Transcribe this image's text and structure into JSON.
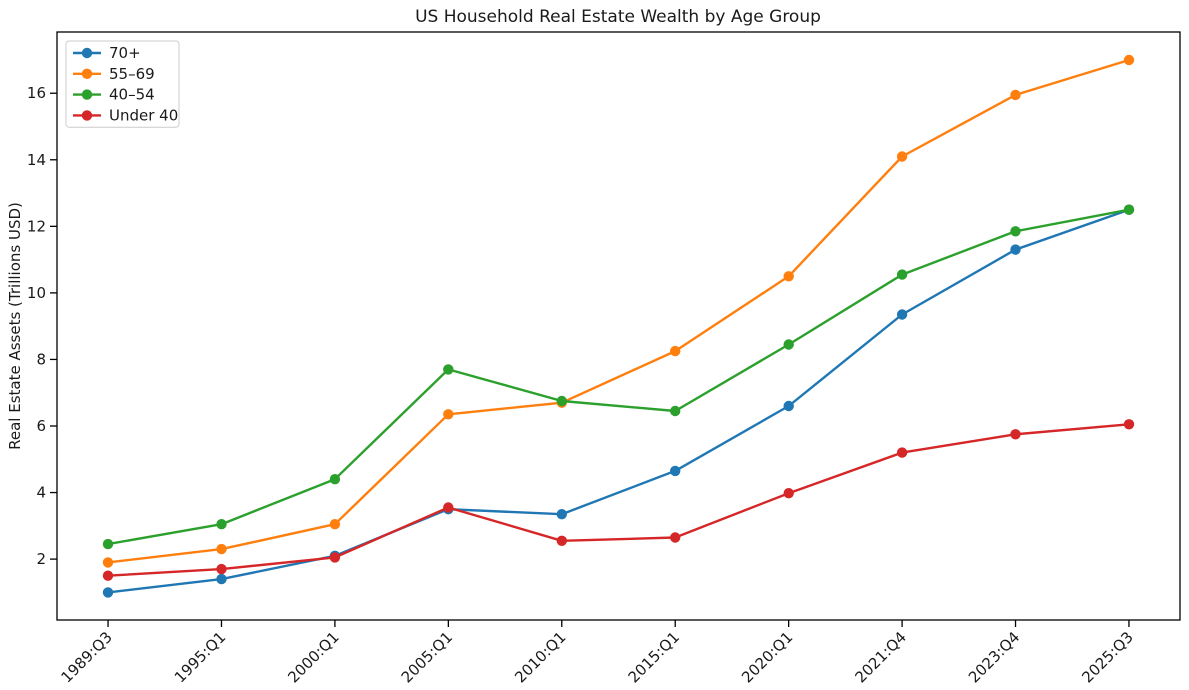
{
  "figure": {
    "background": "#ffffff",
    "text_color": "#1a1a1a",
    "spine_color": "#000000",
    "legend_border_color": "#cccccc",
    "legend_background": "#ffffff"
  },
  "chart_data": {
    "type": "line",
    "title": "US Household Real Estate Wealth by Age Group",
    "xlabel": "",
    "ylabel": "Real Estate Assets (Trillions USD)",
    "categories": [
      "1989:Q3",
      "1995:Q1",
      "2000:Q1",
      "2005:Q1",
      "2010:Q1",
      "2015:Q1",
      "2020:Q1",
      "2021:Q4",
      "2023:Q4",
      "2025:Q3"
    ],
    "series": [
      {
        "name": "70+",
        "color": "#1f77b4",
        "values": [
          1.0,
          1.4,
          2.1,
          3.5,
          3.35,
          4.65,
          6.6,
          9.35,
          11.3,
          12.5
        ]
      },
      {
        "name": "55–69",
        "color": "#ff7f0e",
        "values": [
          1.9,
          2.3,
          3.05,
          6.35,
          6.7,
          8.25,
          10.5,
          14.1,
          15.95,
          17.0
        ]
      },
      {
        "name": "40–54",
        "color": "#2ca02c",
        "values": [
          2.45,
          3.05,
          4.4,
          7.7,
          6.75,
          6.45,
          8.45,
          10.55,
          11.85,
          12.5
        ]
      },
      {
        "name": "Under 40",
        "color": "#d62728",
        "values": [
          1.5,
          1.7,
          2.05,
          3.55,
          2.55,
          2.65,
          3.98,
          5.2,
          5.75,
          6.05
        ]
      }
    ],
    "yticks": [
      2,
      4,
      6,
      8,
      10,
      12,
      14,
      16
    ],
    "ylim": [
      0.17,
      17.84
    ],
    "grid": false,
    "legend_position": "upper left",
    "marker": "circle",
    "x_tick_rotation_deg": 45
  }
}
